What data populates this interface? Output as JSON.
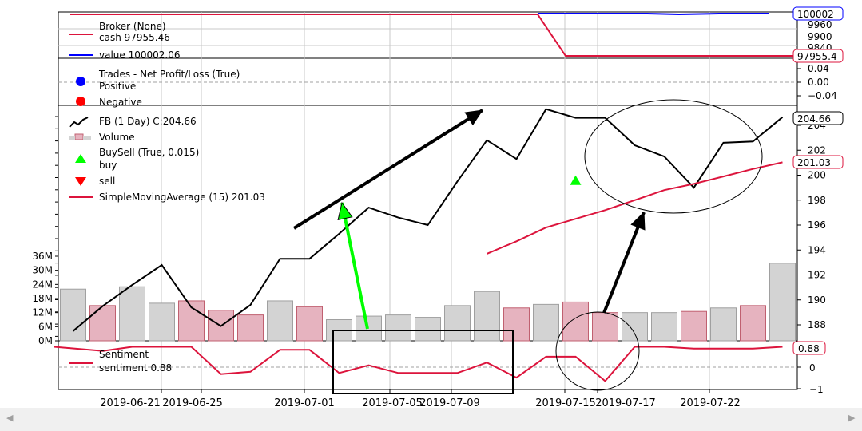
{
  "chart_data": {
    "type": "line",
    "panels": [
      {
        "name": "broker",
        "legend": [
          {
            "label": "Broker (None)",
            "color": ""
          },
          {
            "label": "cash 97955.46",
            "color": "#dc143c"
          },
          {
            "label": "value 100002.06",
            "color": "#0000ff"
          }
        ],
        "y_ticks": [
          "9900",
          "9840"
        ],
        "y_ticks_partial": [
          "9960"
        ],
        "price_tags": [
          {
            "text": "100002",
            "color": "#0000ff"
          },
          {
            "text": "97955.4",
            "color": "#dc143c"
          }
        ],
        "series": [
          {
            "name": "cash",
            "values": [
              100000,
              100000,
              100000,
              100000,
              100000,
              100000,
              100000,
              100000,
              100000,
              100000,
              100000,
              100000,
              100000,
              100000,
              100000,
              100000,
              100000,
              100000,
              97955.46,
              97955.46,
              97955.46,
              97955.46,
              97955.46,
              97955.46,
              97955.46
            ]
          },
          {
            "name": "value",
            "values": [
              null,
              null,
              null,
              null,
              null,
              null,
              null,
              null,
              null,
              null,
              null,
              null,
              null,
              null,
              null,
              null,
              null,
              100000,
              100000,
              99995,
              99990,
              99986,
              99990,
              99998,
              100002.06
            ]
          }
        ]
      },
      {
        "name": "trades",
        "legend": [
          {
            "label": "Trades - Net Profit/Loss (True)",
            "color": ""
          },
          {
            "label": "Positive",
            "color": "#0000ff"
          },
          {
            "label": "Negative",
            "color": "#ff0000"
          }
        ],
        "y_ticks": [
          "0.04",
          "0.00",
          "−0.04"
        ],
        "ylim": [
          -0.06,
          0.06
        ]
      },
      {
        "name": "price",
        "legend": [
          {
            "label": "FB (1 Day) C:204.66",
            "color": "#000000"
          },
          {
            "label": "Volume",
            "color": "#e0a0b0"
          },
          {
            "label": "BuySell (True, 0.015)",
            "color": ""
          },
          {
            "label": "buy",
            "color": "#00ff00"
          },
          {
            "label": "sell",
            "color": "#ff0000"
          },
          {
            "label": "SimpleMovingAverage (15) 201.03",
            "color": "#dc143c"
          }
        ],
        "y_ticks": [
          "204",
          "202",
          "200",
          "198",
          "196",
          "194",
          "192",
          "190",
          "188"
        ],
        "volume_ticks": [
          "36M",
          "30M",
          "24M",
          "18M",
          "12M",
          "6M",
          "0M"
        ],
        "ylim": [
          186.5,
          205.5
        ],
        "price_tags": [
          {
            "text": "204.66",
            "color": "#000000"
          },
          {
            "text": "201.03",
            "color": "#dc143c"
          }
        ],
        "close": [
          187.5,
          189.5,
          191.2,
          192.8,
          189.4,
          187.9,
          189.6,
          193.3,
          193.3,
          195.3,
          197.4,
          196.6,
          196.0,
          199.5,
          202.8,
          201.3,
          205.3,
          204.6,
          204.6,
          202.4,
          201.5,
          199.0,
          202.6,
          202.7,
          204.66
        ],
        "sma": [
          null,
          null,
          null,
          null,
          null,
          null,
          null,
          null,
          null,
          null,
          null,
          null,
          null,
          null,
          193.7,
          194.7,
          195.8,
          196.5,
          197.2,
          198.0,
          198.8,
          199.3,
          199.9,
          200.5,
          201.03
        ],
        "volume_millions": [
          22,
          15,
          23,
          16,
          17,
          13,
          11,
          17,
          14.5,
          9,
          10.5,
          11,
          10,
          15,
          21,
          14,
          15.5,
          16.5,
          12,
          12,
          12,
          12.5,
          14,
          15,
          33
        ],
        "volume_up": [
          true,
          false,
          true,
          true,
          false,
          false,
          false,
          true,
          false,
          true,
          true,
          true,
          true,
          true,
          true,
          false,
          true,
          false,
          false,
          true,
          true,
          false,
          true,
          false,
          true
        ],
        "buy_markers": [
          {
            "x": 17,
            "y": 199.6
          }
        ]
      },
      {
        "name": "sentiment",
        "legend": [
          {
            "label": "Sentiment",
            "color": ""
          },
          {
            "label": "sentiment 0.88",
            "color": "#dc143c"
          }
        ],
        "y_ticks": [
          "0",
          "−1"
        ],
        "price_tags": [
          {
            "text": "0.88",
            "color": "#dc143c"
          }
        ],
        "ylim": [
          -1.3,
          1.25
        ],
        "series": [
          {
            "name": "sentiment",
            "values": [
              0.88,
              0.7,
              0.88,
              0.88,
              0.88,
              -0.3,
              -0.2,
              0.75,
              0.75,
              -0.25,
              0.08,
              -0.25,
              -0.25,
              -0.25,
              0.2,
              -0.45,
              0.45,
              0.45,
              -0.6,
              0.88,
              0.88,
              0.8,
              0.8,
              0.8,
              0.88
            ]
          }
        ]
      }
    ],
    "x_tick_labels": [
      "2019-06-21",
      "2019-06-25",
      "2019-07-01",
      "2019-07-05",
      "2019-07-09",
      "2019-07-15",
      "2019-07-17",
      "2019-07-22"
    ],
    "annotations": [
      {
        "kind": "arrow",
        "color": "#000000"
      },
      {
        "kind": "arrow",
        "color": "#00ff00"
      },
      {
        "kind": "arrow",
        "color": "#000000"
      },
      {
        "kind": "ellipse",
        "color": "#000000"
      },
      {
        "kind": "ellipse",
        "color": "#000000"
      },
      {
        "kind": "rectangle",
        "color": "#000000"
      }
    ],
    "grid": true
  }
}
